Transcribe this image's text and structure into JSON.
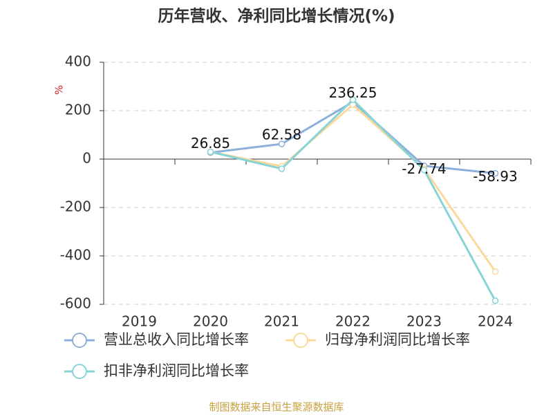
{
  "chart_data": {
    "type": "line",
    "title": "历年营收、净利同比增长情况(%)",
    "y_label": "%",
    "footer": "制图数据来自恒生聚源数据库",
    "categories": [
      "2019",
      "2020",
      "2021",
      "2022",
      "2023",
      "2024"
    ],
    "series": [
      {
        "name": "营业总收入同比增长率",
        "color": "#8eaedb",
        "labels": true,
        "values": [
          null,
          26.85,
          62.58,
          236.25,
          -27.74,
          -58.93
        ]
      },
      {
        "name": "归母净利润同比增长率",
        "color": "#fcd89a",
        "values": [
          null,
          30,
          -30,
          225,
          -40,
          -465
        ]
      },
      {
        "name": "扣非净利润同比增长率",
        "color": "#86d4d8",
        "values": [
          null,
          30,
          -40,
          245,
          -45,
          -585
        ]
      }
    ],
    "ylim": [
      -600,
      400
    ],
    "yticks": [
      -600,
      -400,
      -200,
      0,
      200,
      400
    ],
    "grid": true
  }
}
